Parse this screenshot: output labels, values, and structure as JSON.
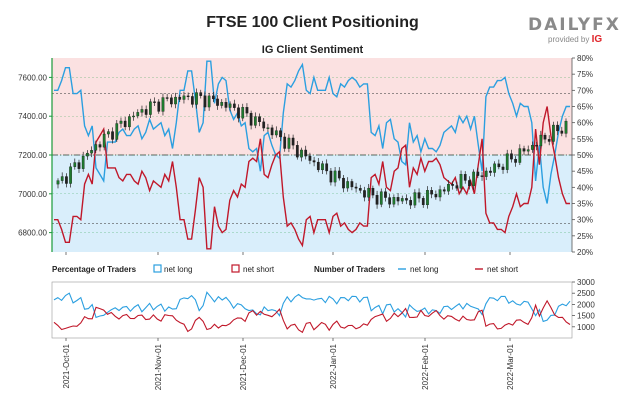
{
  "header": {
    "title": "FTSE 100 Client Positioning",
    "subtitle": "IG Client Sentiment",
    "brand": "DAILYFX",
    "brand_sub": "provided by",
    "brand_ig": "IG"
  },
  "colors": {
    "long": "#2b9fe0",
    "short": "#c0182a",
    "long_zone": "#d9eefb",
    "short_zone": "#fbe1e1",
    "candle": "#222222"
  },
  "chart_data": [
    {
      "type": "line",
      "title": "IG Client Sentiment",
      "y_left_ticks": [
        "7600.00",
        "7400.00",
        "7200.00",
        "7000.00",
        "6800.00"
      ],
      "y_left_values": [
        7600,
        7400,
        7200,
        7000,
        6800
      ],
      "ylim_left": [
        6700,
        7700
      ],
      "y_right_ticks": [
        "80%",
        "75%",
        "70%",
        "65%",
        "60%",
        "55%",
        "50%",
        "45%",
        "40%",
        "35%",
        "30%",
        "25%",
        "20%"
      ],
      "ylim_right": [
        20,
        80
      ],
      "x_ticks": [
        "2021-Oct-01",
        "2021-Nov-01",
        "2021-Dec-01",
        "2022-Jan-01",
        "2022-Feb-01",
        "2022-Mar-01"
      ],
      "series": [
        {
          "name": "net long",
          "values": [
            70,
            70,
            73,
            77,
            77,
            69,
            69,
            70,
            59,
            56,
            59,
            46,
            44,
            42,
            54,
            54,
            54,
            57,
            58,
            56,
            56,
            58,
            59,
            55,
            57,
            61,
            58,
            59,
            60,
            56,
            58,
            52,
            60,
            70,
            70,
            76,
            76,
            67,
            57,
            60,
            79,
            79,
            66,
            72,
            74,
            73,
            64,
            61,
            63,
            59,
            60,
            52,
            51,
            52,
            45,
            56,
            57,
            53,
            50,
            49,
            63,
            72,
            71,
            73,
            76,
            78,
            70,
            69,
            74,
            70,
            70,
            70,
            74,
            69,
            68,
            72,
            71,
            73,
            74,
            73,
            71,
            72,
            72,
            57,
            56,
            59,
            52,
            60,
            61,
            55,
            54,
            48,
            47,
            60,
            54,
            56,
            51,
            55,
            52,
            52,
            51,
            53,
            57,
            58,
            59,
            57,
            62,
            60,
            62,
            58,
            62,
            53,
            45,
            68,
            71,
            71,
            73,
            73,
            74,
            69,
            66,
            62,
            66,
            65,
            65,
            60,
            42,
            53,
            40,
            35,
            44,
            50,
            57,
            62,
            65,
            65
          ]
        },
        {
          "name": "net short",
          "values": [
            30,
            30,
            27,
            23,
            23,
            31,
            31,
            30,
            41,
            44,
            41,
            54,
            56,
            58,
            46,
            46,
            46,
            43,
            42,
            44,
            44,
            42,
            41,
            45,
            43,
            39,
            42,
            41,
            40,
            44,
            42,
            48,
            40,
            30,
            30,
            24,
            24,
            33,
            43,
            40,
            21,
            21,
            34,
            28,
            26,
            27,
            36,
            39,
            37,
            41,
            40,
            48,
            49,
            48,
            55,
            44,
            43,
            47,
            50,
            51,
            37,
            28,
            29,
            27,
            24,
            22,
            30,
            31,
            26,
            30,
            30,
            30,
            26,
            31,
            32,
            28,
            29,
            27,
            26,
            27,
            29,
            28,
            28,
            43,
            44,
            41,
            48,
            40,
            39,
            45,
            46,
            52,
            53,
            40,
            46,
            44,
            49,
            45,
            48,
            48,
            49,
            47,
            43,
            42,
            41,
            43,
            38,
            40,
            38,
            42,
            38,
            47,
            55,
            32,
            29,
            29,
            27,
            27,
            26,
            31,
            34,
            38,
            34,
            35,
            35,
            40,
            58,
            47,
            60,
            65,
            56,
            50,
            43,
            38,
            35,
            35
          ]
        }
      ]
    },
    {
      "type": "line",
      "title": "Percentage of Traders",
      "legend": [
        "net long",
        "net short"
      ],
      "number_title": "Number of Traders",
      "number_legend": [
        "net long",
        "net short"
      ],
      "y_right_ticks": [
        "3000",
        "2500",
        "2000",
        "1500",
        "1000"
      ],
      "ylim_right": [
        500,
        3000
      ],
      "x_ticks": [
        "2021-Oct-01",
        "2021-Nov-01",
        "2021-Dec-01",
        "2022-Jan-01",
        "2022-Feb-01",
        "2022-Mar-01"
      ]
    }
  ]
}
